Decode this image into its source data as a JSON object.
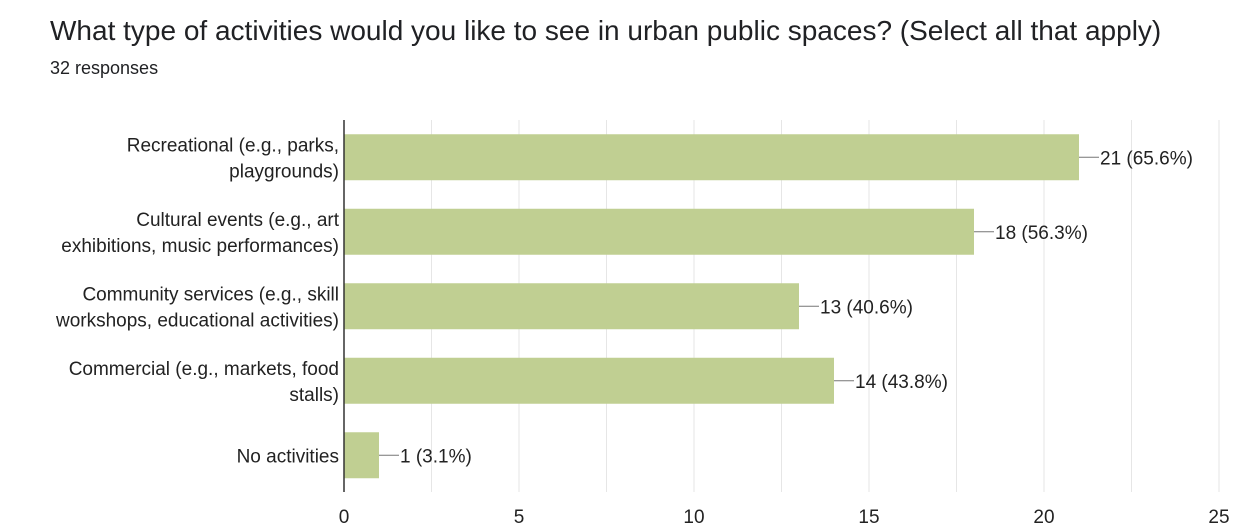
{
  "header": {
    "question": "What type of activities would you like to see in urban public spaces? (Select all that apply)",
    "responses": "32 responses"
  },
  "colors": {
    "bar": "#c0cf92",
    "grid": "#e6e6e6",
    "axis": "#333333",
    "leader": "#777777"
  },
  "chart_data": {
    "type": "bar",
    "orientation": "horizontal",
    "categories": [
      [
        "Recreational (e.g., parks,",
        "playgrounds)"
      ],
      [
        "Cultural events (e.g., art",
        "exhibitions, music performances)"
      ],
      [
        "Community services (e.g., skill",
        "workshops, educational activities)"
      ],
      [
        "Commercial (e.g., markets, food",
        "stalls)"
      ],
      [
        "No activities"
      ]
    ],
    "values": [
      21,
      18,
      13,
      14,
      1
    ],
    "data_labels": [
      "21 (65.6%)",
      "18 (56.3%)",
      "13 (40.6%)",
      "14 (43.8%)",
      "1 (3.1%)"
    ],
    "xlim": [
      0,
      25
    ],
    "xticks": [
      0,
      5,
      10,
      15,
      20,
      25
    ],
    "grid": true
  }
}
